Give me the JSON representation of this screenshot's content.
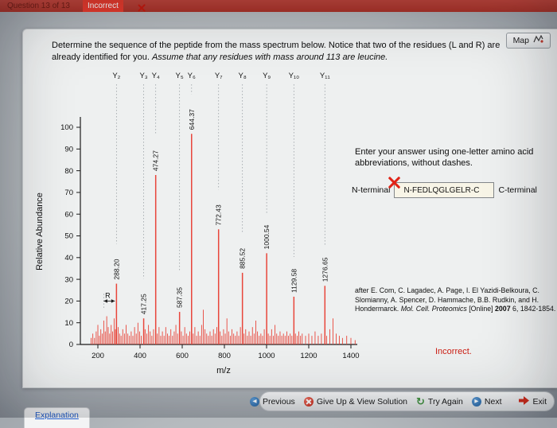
{
  "header": {
    "question_counter": "Question 13 of 13",
    "status_badge": "Incorrect",
    "map_button": "Map"
  },
  "question": {
    "normal": "Determine the sequence of the peptide from the mass spectrum below. Notice that two of the residues (L and R) are already identified for you. ",
    "italic": "Assume that any residues with mass around 113 are leucine."
  },
  "chart_data": {
    "type": "bar",
    "title": "",
    "xlabel": "m/z",
    "ylabel": "Relative Abundance",
    "xlim": [
      120,
      1460
    ],
    "ylim": [
      0,
      100
    ],
    "x_ticks": [
      200,
      400,
      600,
      800,
      1000,
      1200,
      1400
    ],
    "y_ticks": [
      0,
      10,
      20,
      30,
      40,
      50,
      60,
      70,
      80,
      90,
      100
    ],
    "peaks": [
      {
        "mz": 288.2,
        "abundance": 28,
        "label": "288.20",
        "ion": "Y₂"
      },
      {
        "mz": 417.25,
        "abundance": 12,
        "label": "417.25",
        "ion": "Y₃"
      },
      {
        "mz": 474.27,
        "abundance": 78,
        "label": "474.27",
        "ion": "Y₄"
      },
      {
        "mz": 587.35,
        "abundance": 15,
        "label": "587.35",
        "ion": "Y₅"
      },
      {
        "mz": 644.37,
        "abundance": 97,
        "label": "644.37",
        "ion": "Y₆"
      },
      {
        "mz": 772.43,
        "abundance": 53,
        "label": "772.43",
        "ion": "Y₇"
      },
      {
        "mz": 885.52,
        "abundance": 33,
        "label": "885.52",
        "ion": "Y₈"
      },
      {
        "mz": 1000.54,
        "abundance": 42,
        "label": "1000.54",
        "ion": "Y₉"
      },
      {
        "mz": 1129.58,
        "abundance": 22,
        "label": "1129.58",
        "ion": "Y₁₀"
      },
      {
        "mz": 1276.65,
        "abundance": 27,
        "label": "1276.65",
        "ion": "Y₁₁"
      }
    ],
    "residue_annotation": {
      "label": "R",
      "from_mz": 228,
      "to_mz": 288,
      "abundance": 20
    },
    "noise": [
      [
        168,
        3
      ],
      [
        176,
        5
      ],
      [
        184,
        3
      ],
      [
        192,
        6
      ],
      [
        200,
        9
      ],
      [
        207,
        4
      ],
      [
        214,
        7
      ],
      [
        221,
        5
      ],
      [
        228,
        11
      ],
      [
        235,
        6
      ],
      [
        242,
        13
      ],
      [
        249,
        8
      ],
      [
        256,
        5
      ],
      [
        263,
        9
      ],
      [
        270,
        6
      ],
      [
        277,
        12
      ],
      [
        283,
        7
      ],
      [
        296,
        8
      ],
      [
        303,
        5
      ],
      [
        310,
        4
      ],
      [
        318,
        7
      ],
      [
        326,
        5
      ],
      [
        334,
        9
      ],
      [
        342,
        5
      ],
      [
        350,
        4
      ],
      [
        358,
        6
      ],
      [
        366,
        4
      ],
      [
        374,
        8
      ],
      [
        382,
        5
      ],
      [
        390,
        10
      ],
      [
        398,
        6
      ],
      [
        406,
        4
      ],
      [
        424,
        7
      ],
      [
        432,
        5
      ],
      [
        440,
        9
      ],
      [
        448,
        6
      ],
      [
        456,
        4
      ],
      [
        464,
        7
      ],
      [
        482,
        5
      ],
      [
        490,
        8
      ],
      [
        498,
        4
      ],
      [
        506,
        6
      ],
      [
        514,
        4
      ],
      [
        522,
        8
      ],
      [
        530,
        5
      ],
      [
        538,
        4
      ],
      [
        546,
        7
      ],
      [
        554,
        4
      ],
      [
        562,
        6
      ],
      [
        570,
        9
      ],
      [
        578,
        5
      ],
      [
        596,
        6
      ],
      [
        604,
        4
      ],
      [
        612,
        8
      ],
      [
        620,
        5
      ],
      [
        628,
        4
      ],
      [
        636,
        6
      ],
      [
        652,
        5
      ],
      [
        660,
        8
      ],
      [
        668,
        4
      ],
      [
        676,
        6
      ],
      [
        684,
        4
      ],
      [
        692,
        9
      ],
      [
        700,
        16
      ],
      [
        708,
        7
      ],
      [
        716,
        5
      ],
      [
        724,
        4
      ],
      [
        732,
        6
      ],
      [
        740,
        4
      ],
      [
        748,
        7
      ],
      [
        756,
        5
      ],
      [
        764,
        8
      ],
      [
        780,
        6
      ],
      [
        788,
        4
      ],
      [
        796,
        7
      ],
      [
        804,
        5
      ],
      [
        812,
        12
      ],
      [
        820,
        6
      ],
      [
        828,
        4
      ],
      [
        836,
        7
      ],
      [
        844,
        5
      ],
      [
        852,
        4
      ],
      [
        860,
        6
      ],
      [
        868,
        4
      ],
      [
        876,
        8
      ],
      [
        893,
        5
      ],
      [
        901,
        7
      ],
      [
        909,
        4
      ],
      [
        917,
        6
      ],
      [
        925,
        4
      ],
      [
        933,
        8
      ],
      [
        941,
        5
      ],
      [
        949,
        11
      ],
      [
        957,
        6
      ],
      [
        965,
        4
      ],
      [
        973,
        5
      ],
      [
        981,
        4
      ],
      [
        989,
        7
      ],
      [
        1008,
        5
      ],
      [
        1016,
        4
      ],
      [
        1024,
        7
      ],
      [
        1032,
        4
      ],
      [
        1040,
        9
      ],
      [
        1048,
        5
      ],
      [
        1056,
        4
      ],
      [
        1064,
        6
      ],
      [
        1072,
        4
      ],
      [
        1080,
        5
      ],
      [
        1088,
        4
      ],
      [
        1096,
        6
      ],
      [
        1104,
        4
      ],
      [
        1112,
        5
      ],
      [
        1120,
        4
      ],
      [
        1137,
        5
      ],
      [
        1145,
        4
      ],
      [
        1153,
        6
      ],
      [
        1161,
        4
      ],
      [
        1169,
        5
      ],
      [
        1185,
        4
      ],
      [
        1200,
        5
      ],
      [
        1215,
        4
      ],
      [
        1230,
        6
      ],
      [
        1245,
        4
      ],
      [
        1260,
        5
      ],
      [
        1285,
        4
      ],
      [
        1300,
        7
      ],
      [
        1315,
        12
      ],
      [
        1330,
        5
      ],
      [
        1345,
        4
      ],
      [
        1360,
        3
      ],
      [
        1380,
        4
      ],
      [
        1400,
        3
      ],
      [
        1420,
        2
      ]
    ]
  },
  "answer": {
    "instructions": "Enter your answer using one-letter amino acid abbreviations, without dashes.",
    "n_terminal_label": "N-terminal",
    "c_terminal_label": "C-terminal",
    "input_value": "N-FEDLQGLGELR-C",
    "feedback": "Incorrect."
  },
  "citation": {
    "authors": "after E. Com, C. Lagadec, A. Page, I. El Yazidi-Belkoura, C. Slomianny, A. Spencer, D. Hammache, B.B. Rudkin, and H. Hondermarck. ",
    "journal": "Mol. Cell. Proteomics",
    "online": " [Online] ",
    "year": "2007",
    "rest": " 6, 1842-1854."
  },
  "footer": {
    "previous_label": "Previous",
    "give_up_label": "Give Up & View Solution",
    "try_again_label": "Try Again",
    "next_label": "Next",
    "exit_label": "Exit"
  },
  "explanation_tab": "Explanation",
  "colors": {
    "peak": "#e8453a",
    "axis": "#1c1c1c",
    "guide": "#9aa0a4",
    "status_red": "#cc2015",
    "badge_red": "#e8392b",
    "link_blue": "#1a57c7"
  }
}
